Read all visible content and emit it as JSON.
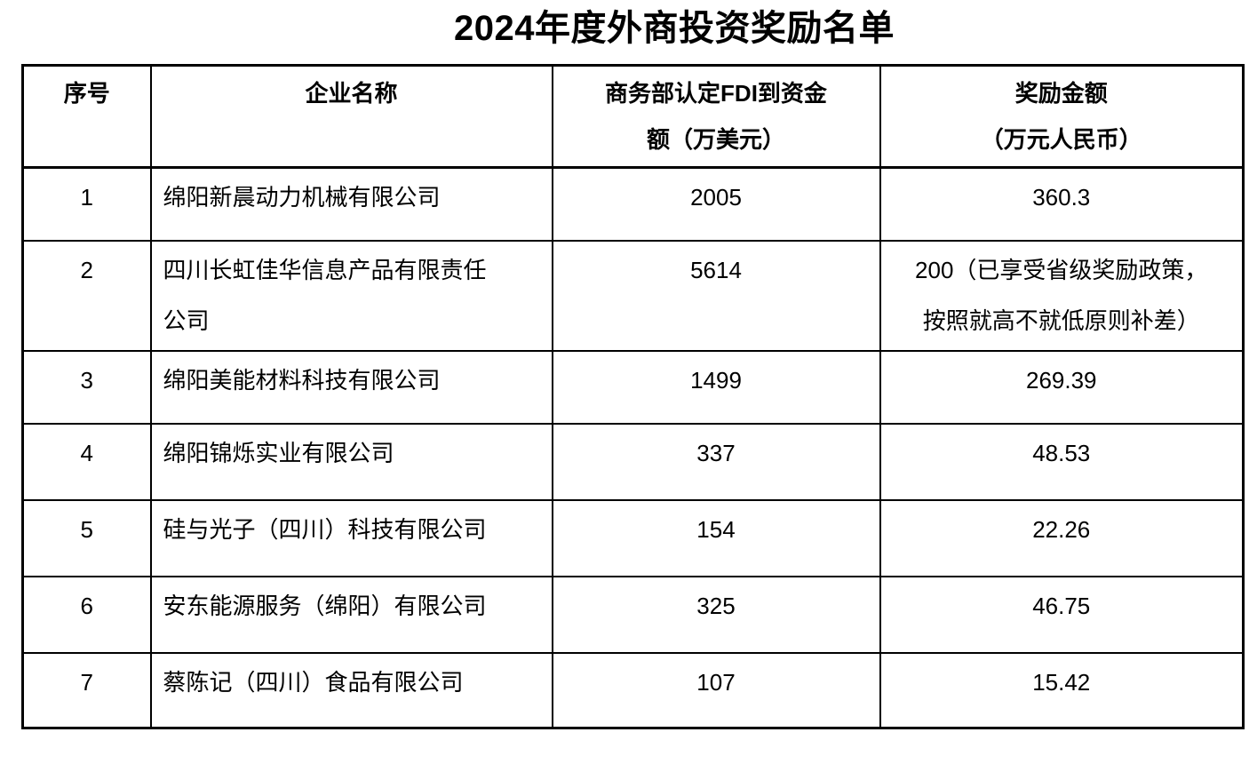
{
  "page": {
    "title": "2024年度外商投资奖励名单"
  },
  "table": {
    "headers": {
      "no": "序号",
      "company": "企业名称",
      "fdi": [
        "商务部认定FDI到资金",
        "额（万美元）"
      ],
      "reward": [
        "奖励金额",
        "（万元人民币）"
      ]
    },
    "rows": [
      {
        "no": "1",
        "company": [
          "绵阳新晨动力机械有限公司"
        ],
        "fdi": "2005",
        "reward": [
          "360.3"
        ]
      },
      {
        "no": "2",
        "company": [
          "四川长虹佳华信息产品有限责任",
          "公司"
        ],
        "fdi": "5614",
        "reward": [
          "200（已享受省级奖励政策，",
          "按照就高不就低原则补差）"
        ]
      },
      {
        "no": "3",
        "company": [
          "绵阳美能材料科技有限公司"
        ],
        "fdi": "1499",
        "reward": [
          "269.39"
        ]
      },
      {
        "no": "4",
        "company": [
          "绵阳锦烁实业有限公司"
        ],
        "fdi": "337",
        "reward": [
          "48.53"
        ]
      },
      {
        "no": "5",
        "company": [
          "硅与光子（四川）科技有限公司"
        ],
        "fdi": "154",
        "reward": [
          "22.26"
        ]
      },
      {
        "no": "6",
        "company": [
          "安东能源服务（绵阳）有限公司"
        ],
        "fdi": "325",
        "reward": [
          "46.75"
        ]
      },
      {
        "no": "7",
        "company": [
          "蔡陈记（四川）食品有限公司"
        ],
        "fdi": "107",
        "reward": [
          "15.42"
        ]
      }
    ],
    "colors": {
      "border": "#000000",
      "text": "#000000",
      "background": "#ffffff"
    }
  }
}
